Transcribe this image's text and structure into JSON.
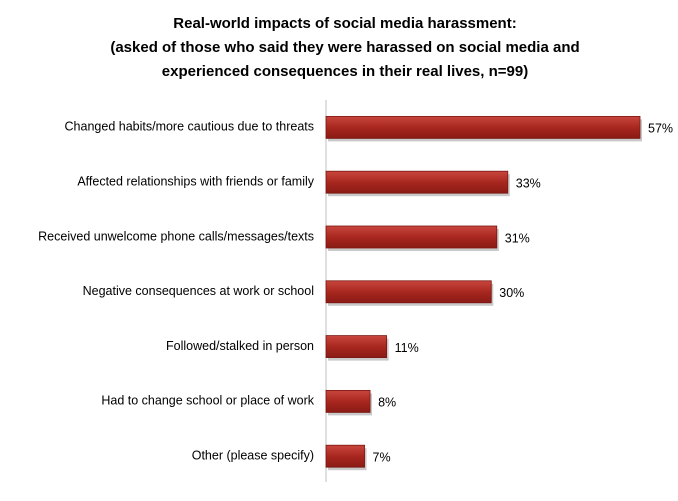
{
  "chart_data": {
    "type": "hbar",
    "title": [
      "Real-world impacts of social media harassment:",
      "(asked of those who said they were harassed on social media and",
      "experienced consequences in their real lives, n=99)"
    ],
    "categories": [
      "Changed habits/more cautious due to threats",
      "Affected relationships with friends or family",
      "Received unwelcome phone calls/messages/texts",
      "Negative consequences at work or school",
      "Followed/stalked in person",
      "Had to change school or place of work",
      "Other (please specify)"
    ],
    "values": [
      57,
      33,
      31,
      30,
      11,
      8,
      7
    ],
    "value_labels": [
      "57%",
      "33%",
      "31%",
      "30%",
      "11%",
      "8%",
      "7%"
    ],
    "color": "#a8271f"
  }
}
